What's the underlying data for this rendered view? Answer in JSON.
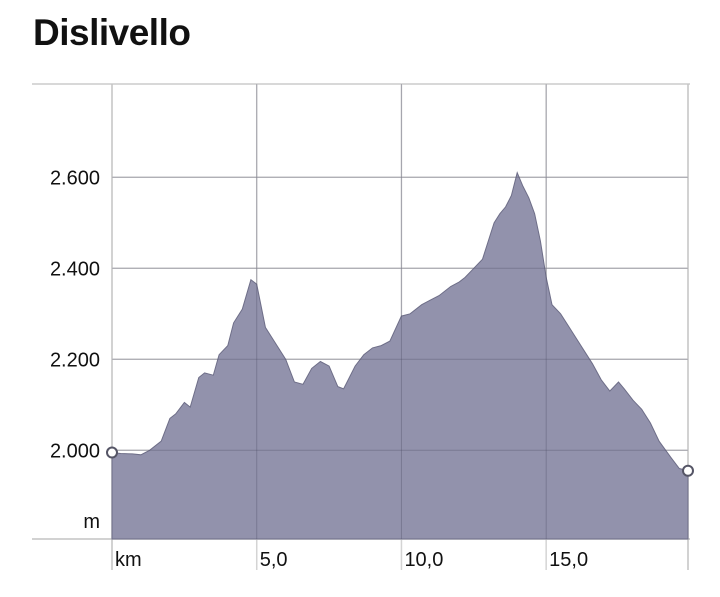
{
  "chart_data": {
    "type": "area",
    "title": "Dislivello",
    "y_unit_label": "m",
    "x_unit_label": "km",
    "y_ticks": [
      {
        "value": 2000,
        "label": "2.000"
      },
      {
        "value": 2200,
        "label": "2.200"
      },
      {
        "value": 2400,
        "label": "2.400"
      },
      {
        "value": 2600,
        "label": "2.600"
      }
    ],
    "x_ticks": [
      {
        "value": 5,
        "label": "5,0"
      },
      {
        "value": 10,
        "label": "10,0"
      },
      {
        "value": 15,
        "label": "15,0"
      }
    ],
    "xlim": [
      0,
      19.9
    ],
    "ylim": [
      1805,
      2805
    ],
    "grid": true,
    "fill_color": "#9292ac",
    "stroke_color": "#6e6e88",
    "series": [
      {
        "x": [
          0,
          0.3,
          0.7,
          1.0,
          1.3,
          1.7,
          2.0,
          2.2,
          2.5,
          2.7,
          3.0,
          3.2,
          3.5,
          3.7,
          4.0,
          4.2,
          4.5,
          4.8,
          5.0,
          5.3,
          5.7,
          6.0,
          6.3,
          6.6,
          6.9,
          7.2,
          7.5,
          7.8,
          8.0,
          8.4,
          8.7,
          9.0,
          9.3,
          9.6,
          10.0,
          10.3,
          10.7,
          11.0,
          11.3,
          11.7,
          12.0,
          12.2,
          12.5,
          12.8,
          13.0,
          13.2,
          13.4,
          13.6,
          13.8,
          14.0,
          14.2,
          14.4,
          14.6,
          14.8,
          15.0,
          15.2,
          15.5,
          15.8,
          16.0,
          16.3,
          16.6,
          16.9,
          17.2,
          17.5,
          17.7,
          18.0,
          18.3,
          18.6,
          18.9,
          19.3,
          19.6,
          19.9
        ],
        "values": [
          1995,
          1993,
          1992,
          1990,
          2000,
          2020,
          2070,
          2080,
          2105,
          2095,
          2160,
          2170,
          2165,
          2210,
          2230,
          2280,
          2310,
          2375,
          2365,
          2270,
          2230,
          2200,
          2150,
          2145,
          2180,
          2195,
          2185,
          2140,
          2135,
          2185,
          2210,
          2225,
          2230,
          2240,
          2295,
          2300,
          2320,
          2330,
          2340,
          2360,
          2370,
          2380,
          2400,
          2420,
          2460,
          2500,
          2520,
          2535,
          2560,
          2610,
          2580,
          2555,
          2520,
          2460,
          2380,
          2320,
          2300,
          2270,
          2250,
          2220,
          2190,
          2155,
          2130,
          2150,
          2135,
          2110,
          2090,
          2060,
          2020,
          1985,
          1960,
          1955
        ]
      }
    ]
  }
}
